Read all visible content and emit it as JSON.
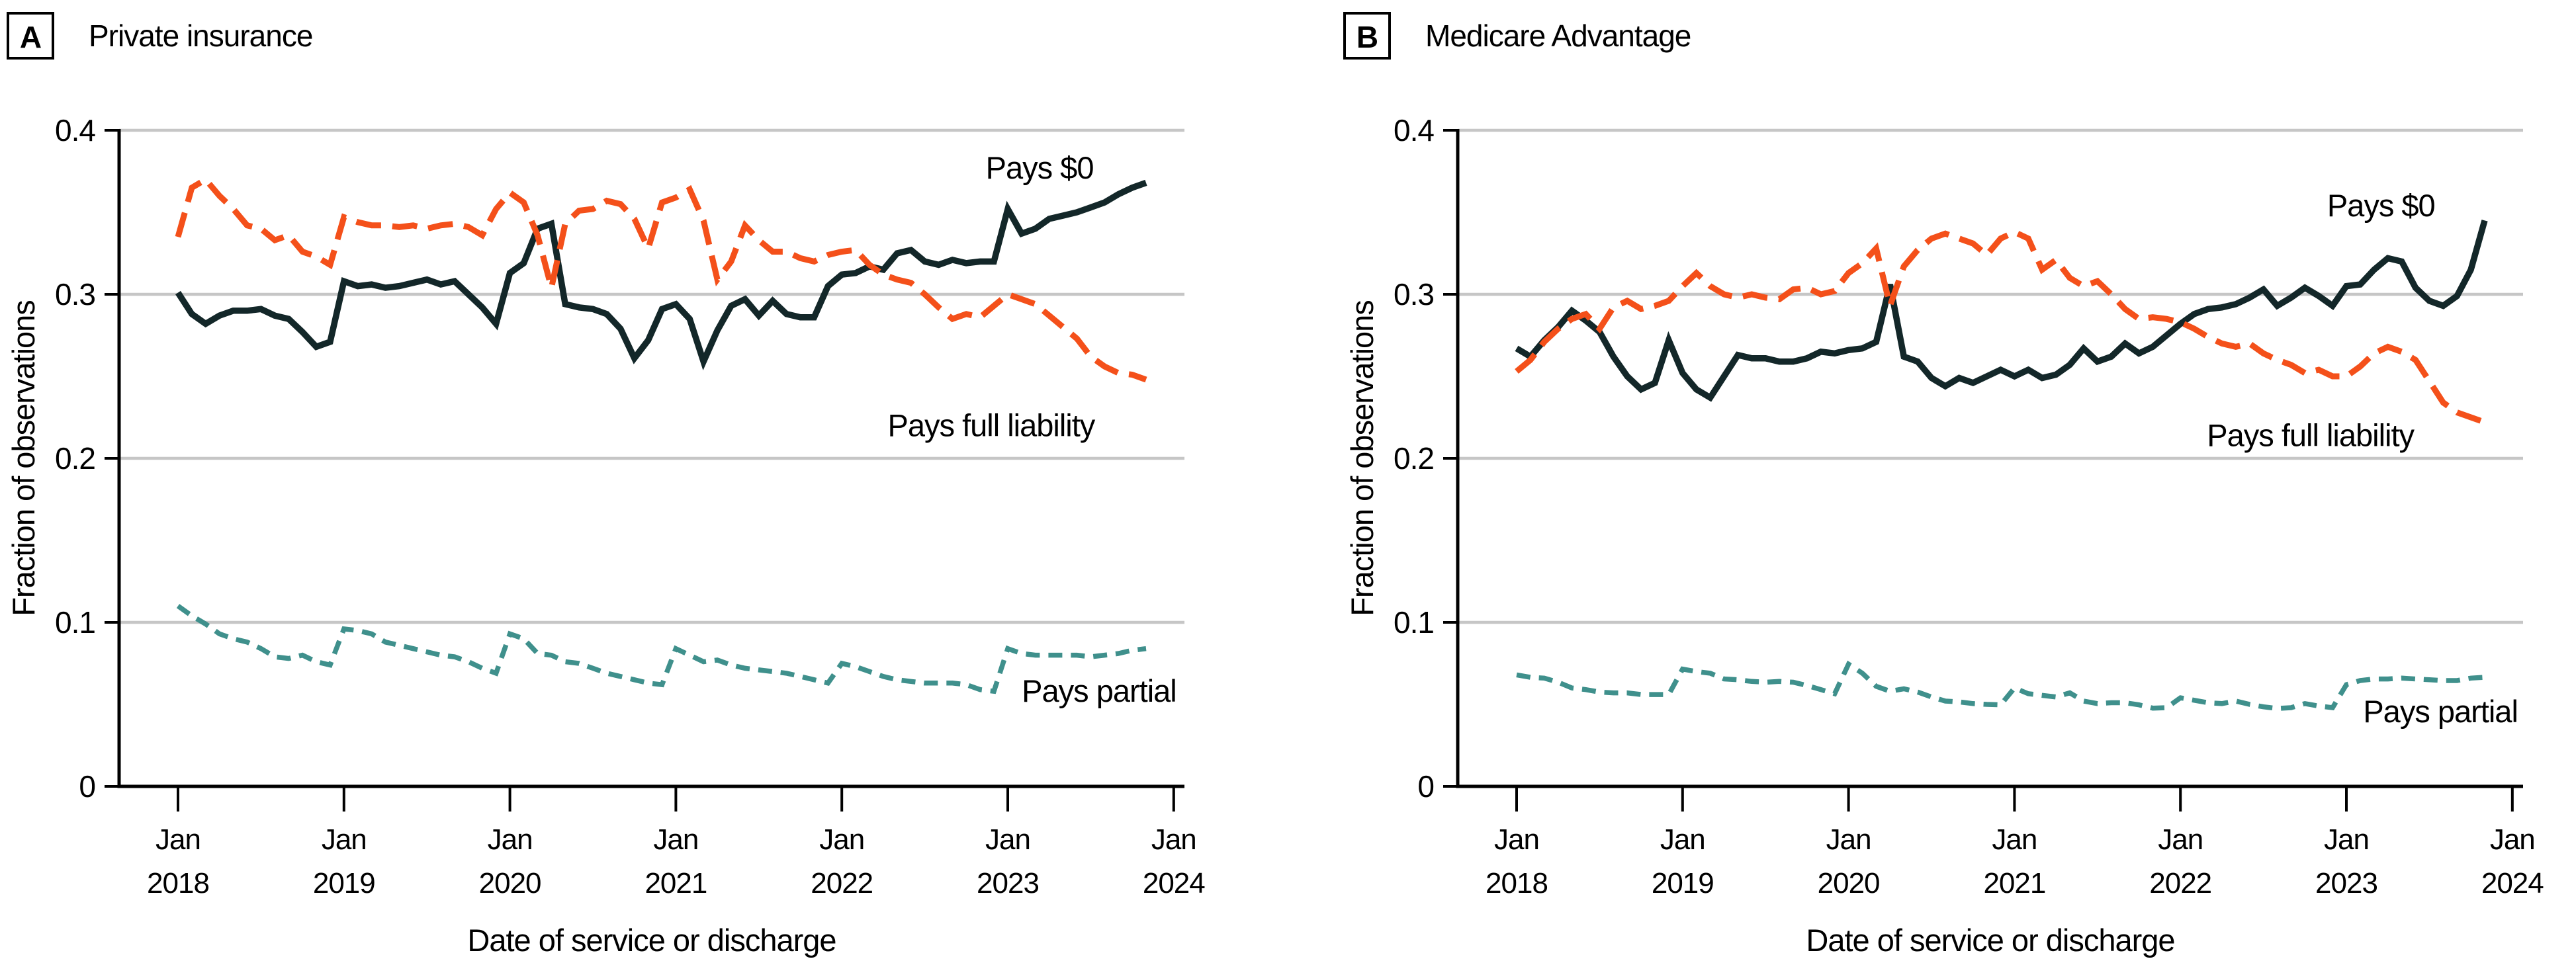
{
  "chart_data": [
    {
      "type": "line",
      "panel_letter": "A",
      "title": "Private insurance",
      "xlabel": "Date of service or discharge",
      "ylabel": "Fraction of observations",
      "x_tick_month": "Jan",
      "x_tick_years": [
        "2018",
        "2019",
        "2020",
        "2021",
        "2022",
        "2023",
        "2024"
      ],
      "y_ticks": [
        "0",
        "0.1",
        "0.2",
        "0.3",
        "0.4"
      ],
      "ylim": [
        0,
        0.4
      ],
      "x_range_months": [
        "2018-01",
        "2023-11"
      ],
      "grid": "horizontal",
      "gridline_color": "#C6C6C6",
      "series": [
        {
          "name": "Pays $0",
          "color": "#132729",
          "dash": "solid",
          "width": 9.5,
          "values": [
            0.301,
            0.288,
            0.282,
            0.287,
            0.29,
            0.29,
            0.291,
            0.287,
            0.285,
            0.277,
            0.268,
            0.271,
            0.308,
            0.305,
            0.306,
            0.304,
            0.305,
            0.307,
            0.309,
            0.306,
            0.308,
            0.3,
            0.292,
            0.282,
            0.313,
            0.319,
            0.34,
            0.343,
            0.294,
            0.292,
            0.291,
            0.288,
            0.279,
            0.261,
            0.272,
            0.291,
            0.294,
            0.285,
            0.259,
            0.278,
            0.293,
            0.297,
            0.287,
            0.296,
            0.288,
            0.286,
            0.286,
            0.305,
            0.312,
            0.313,
            0.317,
            0.315,
            0.325,
            0.327,
            0.32,
            0.318,
            0.321,
            0.319,
            0.32,
            0.32,
            0.352,
            0.337,
            0.34,
            0.346,
            0.348,
            0.35,
            0.353,
            0.356,
            0.361,
            0.365,
            0.368
          ]
        },
        {
          "name": "Pays full liability",
          "color": "#F4501A",
          "dash": "38 17",
          "width": 9,
          "values": [
            0.335,
            0.365,
            0.37,
            0.36,
            0.352,
            0.342,
            0.34,
            0.333,
            0.336,
            0.326,
            0.323,
            0.318,
            0.347,
            0.344,
            0.342,
            0.342,
            0.341,
            0.342,
            0.34,
            0.342,
            0.343,
            0.341,
            0.336,
            0.352,
            0.362,
            0.356,
            0.336,
            0.304,
            0.343,
            0.351,
            0.352,
            0.357,
            0.355,
            0.346,
            0.328,
            0.356,
            0.359,
            0.364,
            0.345,
            0.309,
            0.32,
            0.342,
            0.333,
            0.326,
            0.326,
            0.322,
            0.32,
            0.324,
            0.326,
            0.327,
            0.318,
            0.312,
            0.309,
            0.307,
            0.3,
            0.292,
            0.285,
            0.288,
            0.286,
            0.293,
            0.3,
            0.297,
            0.294,
            0.287,
            0.28,
            0.273,
            0.262,
            0.256,
            0.252,
            0.251,
            0.248
          ]
        },
        {
          "name": "Pays partial",
          "color": "#3F908C",
          "dash": "21 13",
          "width": 7.5,
          "values": [
            0.11,
            0.104,
            0.099,
            0.093,
            0.09,
            0.088,
            0.084,
            0.079,
            0.078,
            0.08,
            0.076,
            0.074,
            0.096,
            0.095,
            0.093,
            0.088,
            0.086,
            0.084,
            0.082,
            0.08,
            0.079,
            0.076,
            0.072,
            0.069,
            0.093,
            0.09,
            0.081,
            0.08,
            0.076,
            0.075,
            0.072,
            0.069,
            0.067,
            0.065,
            0.063,
            0.062,
            0.084,
            0.08,
            0.076,
            0.077,
            0.074,
            0.072,
            0.071,
            0.07,
            0.069,
            0.067,
            0.065,
            0.063,
            0.075,
            0.073,
            0.07,
            0.067,
            0.065,
            0.064,
            0.063,
            0.063,
            0.063,
            0.062,
            0.059,
            0.058,
            0.084,
            0.081,
            0.08,
            0.08,
            0.08,
            0.08,
            0.079,
            0.08,
            0.081,
            0.083,
            0.084
          ]
        }
      ],
      "annotations": [
        {
          "text": "Pays $0",
          "month": 62.3,
          "value": 0.377
        },
        {
          "text": "Pays full liability",
          "month": 58.8,
          "value": 0.22
        },
        {
          "text": "Pays partial",
          "month": 66.6,
          "value": 0.058
        }
      ]
    },
    {
      "type": "line",
      "panel_letter": "B",
      "title": "Medicare Advantage",
      "xlabel": "Date of service or discharge",
      "ylabel": "Fraction of observations",
      "x_tick_month": "Jan",
      "x_tick_years": [
        "2018",
        "2019",
        "2020",
        "2021",
        "2022",
        "2023",
        "2024"
      ],
      "y_ticks": [
        "0",
        "0.1",
        "0.2",
        "0.3",
        "0.4"
      ],
      "ylim": [
        0,
        0.4
      ],
      "x_range_months": [
        "2018-01",
        "2023-11"
      ],
      "grid": "horizontal",
      "gridline_color": "#C6C6C6",
      "series": [
        {
          "name": "Pays $0",
          "color": "#132729",
          "dash": "solid",
          "width": 9.5,
          "values": [
            0.267,
            0.262,
            0.272,
            0.28,
            0.29,
            0.284,
            0.277,
            0.262,
            0.25,
            0.242,
            0.246,
            0.272,
            0.252,
            0.242,
            0.237,
            0.25,
            0.263,
            0.261,
            0.261,
            0.259,
            0.259,
            0.261,
            0.265,
            0.264,
            0.266,
            0.267,
            0.271,
            0.306,
            0.262,
            0.259,
            0.249,
            0.244,
            0.249,
            0.246,
            0.25,
            0.254,
            0.25,
            0.254,
            0.249,
            0.251,
            0.257,
            0.267,
            0.259,
            0.262,
            0.27,
            0.264,
            0.268,
            0.275,
            0.282,
            0.288,
            0.291,
            0.292,
            0.294,
            0.298,
            0.303,
            0.293,
            0.298,
            0.304,
            0.299,
            0.293,
            0.305,
            0.306,
            0.315,
            0.322,
            0.32,
            0.304,
            0.296,
            0.293,
            0.299,
            0.315,
            0.345
          ]
        },
        {
          "name": "Pays full liability",
          "color": "#F4501A",
          "dash": "38 17",
          "width": 9,
          "values": [
            0.253,
            0.26,
            0.271,
            0.279,
            0.285,
            0.288,
            0.279,
            0.292,
            0.296,
            0.291,
            0.293,
            0.296,
            0.305,
            0.313,
            0.305,
            0.3,
            0.298,
            0.3,
            0.298,
            0.297,
            0.303,
            0.304,
            0.3,
            0.302,
            0.313,
            0.319,
            0.328,
            0.293,
            0.317,
            0.327,
            0.334,
            0.337,
            0.334,
            0.331,
            0.324,
            0.334,
            0.338,
            0.334,
            0.315,
            0.321,
            0.31,
            0.305,
            0.308,
            0.3,
            0.291,
            0.285,
            0.286,
            0.285,
            0.283,
            0.279,
            0.274,
            0.27,
            0.268,
            0.27,
            0.264,
            0.26,
            0.257,
            0.252,
            0.254,
            0.25,
            0.25,
            0.256,
            0.264,
            0.268,
            0.265,
            0.26,
            0.247,
            0.234,
            0.228,
            0.225,
            0.222
          ]
        },
        {
          "name": "Pays partial",
          "color": "#3F908C",
          "dash": "21 13",
          "width": 7.5,
          "values": [
            0.068,
            0.0665,
            0.066,
            0.0635,
            0.06,
            0.059,
            0.0575,
            0.057,
            0.057,
            0.056,
            0.056,
            0.056,
            0.0715,
            0.07,
            0.069,
            0.0655,
            0.065,
            0.064,
            0.0635,
            0.064,
            0.0635,
            0.0615,
            0.059,
            0.0565,
            0.0745,
            0.069,
            0.061,
            0.058,
            0.0595,
            0.0575,
            0.0545,
            0.052,
            0.0515,
            0.0505,
            0.05,
            0.0497,
            0.06,
            0.0565,
            0.0555,
            0.0545,
            0.057,
            0.052,
            0.0505,
            0.051,
            0.051,
            0.0497,
            0.0477,
            0.048,
            0.054,
            0.0525,
            0.051,
            0.0505,
            0.052,
            0.05,
            0.0485,
            0.0475,
            0.048,
            0.0505,
            0.049,
            0.048,
            0.062,
            0.0645,
            0.0655,
            0.0655,
            0.066,
            0.0655,
            0.065,
            0.0645,
            0.0645,
            0.066,
            0.0665
          ]
        }
      ],
      "annotations": [
        {
          "text": "Pays $0",
          "month": 62.5,
          "value": 0.354
        },
        {
          "text": "Pays full liability",
          "month": 57.4,
          "value": 0.214
        },
        {
          "text": "Pays partial",
          "month": 66.8,
          "value": 0.0455
        }
      ]
    }
  ]
}
